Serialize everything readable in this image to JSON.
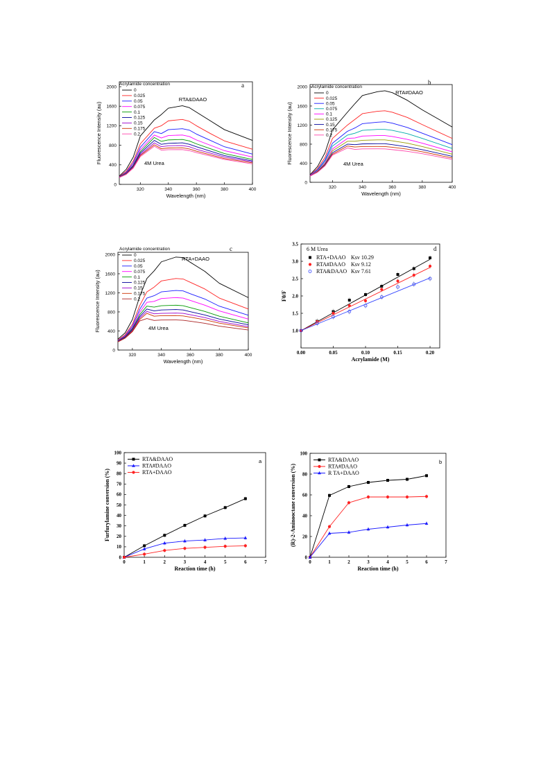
{
  "chart_data": [
    {
      "id": "spec_a",
      "type": "line",
      "panel_letter": "a",
      "legend_title": "Acrylamide concentration",
      "annotation": "RTA&DAAO",
      "note": "4M Urea",
      "xlabel": "Wavelength (nm)",
      "ylabel": "Fluorescence Intensity (au)",
      "xlim": [
        305,
        400
      ],
      "ylim": [
        0,
        2100
      ],
      "xticks": [
        320,
        340,
        360,
        380,
        400
      ],
      "yticks": [
        0,
        400,
        800,
        1200,
        1600,
        2000
      ],
      "series": [
        {
          "name": "0",
          "color": "#000000",
          "values": [
            170,
            310,
            560,
            990,
            1320,
            1430,
            1560,
            1610,
            1570,
            1480,
            1300,
            1120,
            900
          ]
        },
        {
          "name": "0.025",
          "color": "#ff2222",
          "values": [
            160,
            270,
            480,
            830,
            1150,
            1200,
            1300,
            1330,
            1290,
            1200,
            1040,
            890,
            720
          ]
        },
        {
          "name": "0.05",
          "color": "#1a1aff",
          "values": [
            155,
            250,
            440,
            760,
            1080,
            1040,
            1120,
            1140,
            1110,
            1030,
            900,
            770,
            620
          ]
        },
        {
          "name": "0.075",
          "color": "#ff00ff",
          "values": [
            150,
            240,
            410,
            710,
            1010,
            950,
            1000,
            1010,
            980,
            910,
            800,
            690,
            560
          ]
        },
        {
          "name": "0.1",
          "color": "#009900",
          "values": [
            150,
            230,
            390,
            670,
            960,
            880,
            910,
            920,
            890,
            830,
            730,
            630,
            510
          ]
        },
        {
          "name": "0.125",
          "color": "#000099",
          "values": [
            145,
            220,
            370,
            640,
            900,
            820,
            840,
            850,
            820,
            770,
            680,
            590,
            480
          ]
        },
        {
          "name": "0.15",
          "color": "#9900cc",
          "values": [
            145,
            215,
            355,
            610,
            850,
            770,
            790,
            795,
            770,
            720,
            640,
            560,
            460
          ]
        },
        {
          "name": "0.175",
          "color": "#cc3300",
          "values": [
            140,
            210,
            345,
            590,
            810,
            730,
            745,
            750,
            725,
            680,
            605,
            530,
            440
          ]
        },
        {
          "name": "0.2",
          "color": "#ff44aa",
          "values": [
            140,
            205,
            335,
            570,
            780,
            700,
            710,
            712,
            690,
            650,
            580,
            510,
            420
          ]
        }
      ],
      "x": [
        305,
        310,
        315,
        320,
        330,
        335,
        340,
        350,
        355,
        360,
        370,
        380,
        400
      ]
    },
    {
      "id": "spec_b",
      "type": "line",
      "panel_letter": "b",
      "legend_title": "Acrylamide concentration",
      "annotation": "RTA#DAAO",
      "note": "4M Urea",
      "xlabel": "Wavelength (nm)",
      "ylabel": "Fluorescence Intensity (au)",
      "xlim": [
        305,
        400
      ],
      "ylim": [
        0,
        2050
      ],
      "xticks": [
        320,
        340,
        360,
        380,
        400
      ],
      "yticks": [
        0,
        400,
        800,
        1200,
        1600,
        2000
      ],
      "series": [
        {
          "name": "0",
          "color": "#000000",
          "values": [
            160,
            330,
            620,
            1100,
            1470,
            1650,
            1820,
            1900,
            1920,
            1880,
            1720,
            1520,
            1160
          ]
        },
        {
          "name": "0.025",
          "color": "#ff2222",
          "values": [
            150,
            290,
            520,
            920,
            1200,
            1320,
            1440,
            1490,
            1500,
            1470,
            1360,
            1210,
            920
          ]
        },
        {
          "name": "0.05",
          "color": "#1a1aff",
          "values": [
            145,
            265,
            470,
            820,
            1070,
            1140,
            1230,
            1260,
            1270,
            1240,
            1150,
            1030,
            790
          ]
        },
        {
          "name": "0.075",
          "color": "#00aaaa",
          "values": [
            140,
            250,
            440,
            760,
            990,
            1030,
            1090,
            1110,
            1110,
            1090,
            1020,
            920,
            710
          ]
        },
        {
          "name": "0.1",
          "color": "#ff00ff",
          "values": [
            140,
            240,
            410,
            700,
            920,
            930,
            970,
            980,
            980,
            960,
            900,
            820,
            640
          ]
        },
        {
          "name": "0.125",
          "color": "#999900",
          "values": [
            135,
            230,
            390,
            660,
            860,
            860,
            880,
            890,
            890,
            870,
            820,
            750,
            590
          ]
        },
        {
          "name": "0.15",
          "color": "#000099",
          "values": [
            135,
            220,
            370,
            620,
            800,
            790,
            805,
            810,
            810,
            790,
            745,
            685,
            545
          ]
        },
        {
          "name": "0.175",
          "color": "#cc3300",
          "values": [
            130,
            215,
            355,
            590,
            760,
            740,
            750,
            752,
            750,
            735,
            695,
            640,
            510
          ]
        },
        {
          "name": "0.2",
          "color": "#ff44aa",
          "values": [
            130,
            210,
            345,
            570,
            720,
            690,
            700,
            702,
            700,
            685,
            650,
            600,
            480
          ]
        }
      ],
      "x": [
        305,
        310,
        315,
        320,
        330,
        335,
        340,
        350,
        355,
        360,
        370,
        380,
        400
      ]
    },
    {
      "id": "spec_c",
      "type": "line",
      "panel_letter": "c",
      "legend_title": "Acrylamide concentration",
      "annotation": "RTA+DAAO",
      "note": "4M Urea",
      "xlabel": "Wavelength (nm)",
      "ylabel": "Fluorescence Intensity (au)",
      "xlim": [
        310,
        400
      ],
      "ylim": [
        0,
        2050
      ],
      "xticks": [
        320,
        340,
        360,
        380,
        400
      ],
      "yticks": [
        0,
        400,
        800,
        1200,
        1600,
        2000
      ],
      "series": [
        {
          "name": "0",
          "color": "#000000",
          "values": [
            230,
            360,
            640,
            1120,
            1500,
            1660,
            1850,
            1950,
            1940,
            1840,
            1650,
            1400,
            1100
          ]
        },
        {
          "name": "0.025",
          "color": "#ff2222",
          "values": [
            210,
            320,
            540,
            930,
            1220,
            1320,
            1450,
            1500,
            1490,
            1420,
            1280,
            1090,
            860
          ]
        },
        {
          "name": "0.05",
          "color": "#1a1aff",
          "values": [
            200,
            300,
            500,
            850,
            1090,
            1140,
            1220,
            1250,
            1240,
            1180,
            1070,
            920,
            730
          ]
        },
        {
          "name": "0.075",
          "color": "#ff00ff",
          "values": [
            195,
            290,
            470,
            790,
            1000,
            1020,
            1080,
            1100,
            1090,
            1040,
            940,
            820,
            650
          ]
        },
        {
          "name": "0.1",
          "color": "#009900",
          "values": [
            190,
            280,
            450,
            740,
            920,
            900,
            930,
            940,
            930,
            890,
            810,
            710,
            570
          ]
        },
        {
          "name": "0.125",
          "color": "#000099",
          "values": [
            185,
            270,
            430,
            700,
            860,
            820,
            840,
            850,
            840,
            805,
            735,
            650,
            530
          ]
        },
        {
          "name": "0.15",
          "color": "#9900cc",
          "values": [
            180,
            260,
            410,
            670,
            810,
            760,
            770,
            775,
            770,
            740,
            680,
            600,
            490
          ]
        },
        {
          "name": "0.175",
          "color": "#cc3300",
          "values": [
            175,
            255,
            400,
            640,
            770,
            710,
            720,
            722,
            715,
            690,
            635,
            565,
            465
          ]
        },
        {
          "name": "0.2",
          "color": "#aa2222",
          "values": [
            170,
            250,
            385,
            610,
            660,
            620,
            630,
            632,
            625,
            605,
            560,
            500,
            420
          ]
        }
      ],
      "x": [
        310,
        315,
        320,
        325,
        330,
        335,
        340,
        350,
        355,
        360,
        370,
        380,
        400
      ]
    },
    {
      "id": "sv_d",
      "type": "scatter",
      "panel_letter": "d",
      "annotation": "6 M Urea",
      "xlabel": "Acrylamide (M)",
      "ylabel": "F0/F",
      "xlim": [
        0,
        0.215
      ],
      "ylim": [
        0.5,
        3.5
      ],
      "xticks": [
        "0.00",
        "0.05",
        "0.10",
        "0.15",
        "0.20"
      ],
      "yticks": [
        "1.0",
        "1.5",
        "2.0",
        "2.5",
        "3.0",
        "3.5"
      ],
      "x": [
        0,
        0.025,
        0.05,
        0.075,
        0.1,
        0.125,
        0.15,
        0.175,
        0.2
      ],
      "series": [
        {
          "name": "RTA+DAAO",
          "ksv_label": "Ksv 10.29",
          "color": "#000000",
          "marker": "square",
          "slope": 10.29,
          "values": [
            1.0,
            1.27,
            1.55,
            1.88,
            2.04,
            2.28,
            2.62,
            2.79,
            3.1
          ]
        },
        {
          "name": "RTA#DAAO",
          "ksv_label": "Ksv 9.12",
          "color": "#ff2222",
          "marker": "circle",
          "slope": 9.12,
          "values": [
            1.0,
            1.26,
            1.5,
            1.72,
            1.86,
            2.19,
            2.43,
            2.6,
            2.86
          ]
        },
        {
          "name": "RTA&DAAO",
          "ksv_label": "Ksv 7.61",
          "color": "#3344ff",
          "marker": "open-circle",
          "slope": 7.61,
          "values": [
            1.0,
            1.21,
            1.4,
            1.55,
            1.72,
            1.97,
            2.26,
            2.34,
            2.5
          ]
        }
      ]
    },
    {
      "id": "conv_a",
      "type": "line",
      "panel_letter": "a",
      "xlabel": "Reaction time (h)",
      "ylabel": "Furfurylamine conversion (%)",
      "xlim": [
        0,
        7
      ],
      "ylim": [
        0,
        100
      ],
      "xticks": [
        0,
        1,
        2,
        3,
        4,
        5,
        6,
        7
      ],
      "yticks": [
        0,
        10,
        20,
        30,
        40,
        50,
        60,
        70,
        80,
        90,
        100
      ],
      "x": [
        0,
        1,
        2,
        3,
        4,
        5,
        6
      ],
      "series": [
        {
          "name": "RTA&DAAO",
          "color": "#000000",
          "marker": "square",
          "values": [
            0,
            11,
            21,
            30.5,
            39.5,
            47.5,
            56
          ]
        },
        {
          "name": "RTA#DAAO",
          "color": "#1a1aff",
          "marker": "triangle",
          "values": [
            0,
            8,
            13.5,
            15.5,
            16.5,
            18,
            18.5
          ]
        },
        {
          "name": "RTA+DAAO",
          "color": "#ff2222",
          "marker": "circle",
          "values": [
            0,
            3,
            6.5,
            8.5,
            9.5,
            10.5,
            11
          ]
        }
      ]
    },
    {
      "id": "conv_b",
      "type": "line",
      "panel_letter": "b",
      "xlabel": "Reaction time (h)",
      "ylabel": "(R)-2-Aminooctane conversion (%)",
      "xlim": [
        0,
        7
      ],
      "ylim": [
        0,
        100
      ],
      "xticks": [
        0,
        1,
        2,
        3,
        4,
        5,
        6,
        7
      ],
      "yticks": [
        0,
        20,
        40,
        60,
        80,
        100
      ],
      "x": [
        0,
        1,
        2,
        3,
        4,
        5,
        6
      ],
      "series": [
        {
          "name": "RTA&DAAO",
          "color": "#000000",
          "marker": "square",
          "values": [
            0,
            59.5,
            68,
            72,
            74,
            75,
            78.5
          ]
        },
        {
          "name": "RTA#DAAO",
          "color": "#ff2222",
          "marker": "circle",
          "values": [
            0,
            29.5,
            52.5,
            58,
            58,
            58,
            58.5
          ]
        },
        {
          "name": "R TA+DAAO",
          "color": "#1a1aff",
          "marker": "triangle",
          "values": [
            0,
            23,
            24,
            27,
            29,
            31,
            32.5
          ]
        }
      ]
    }
  ]
}
